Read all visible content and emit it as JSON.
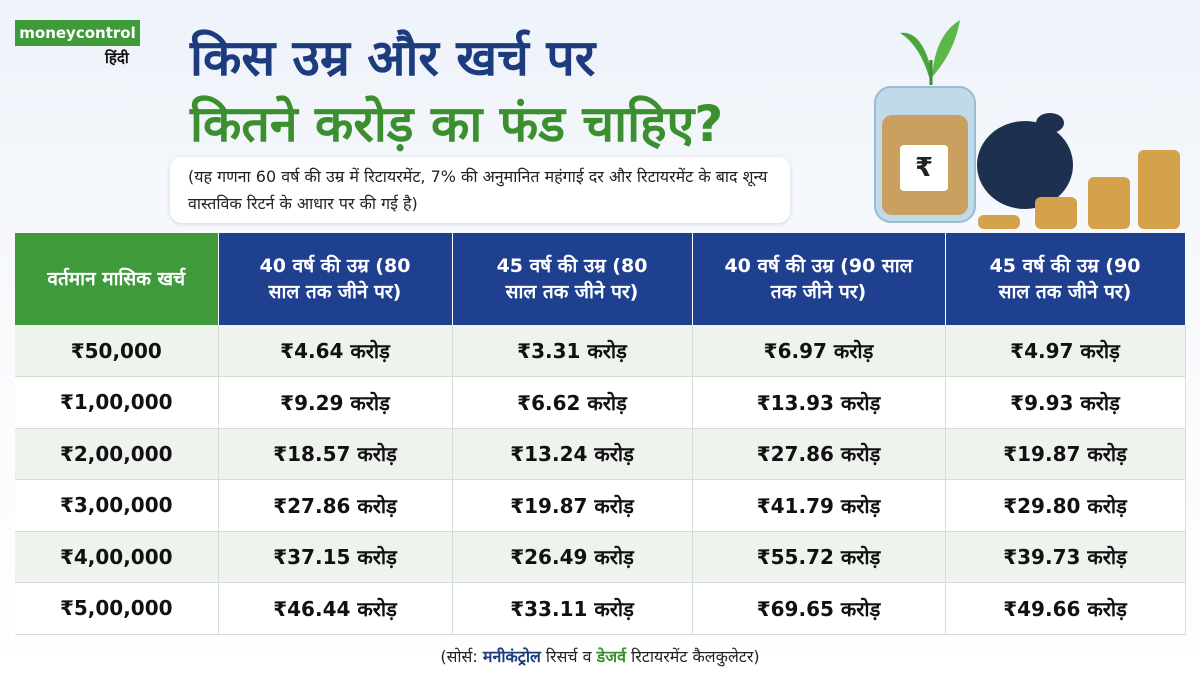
{
  "header": {
    "logo": "moneycontrol",
    "logo_sub": "हिंदी",
    "title_line1": "किस उम्र और खर्च पर",
    "title_line2": "कितने करोड़ का फंड चाहिए?",
    "note": "(यह गणना 60 वर्ष की उम्र में रिटायरमेंट, 7% की अनुमानित महंगाई दर और रिटायरमेंट के बाद शून्य वास्तविक रिटर्न के आधार पर की गई है)",
    "jar_symbol": "₹"
  },
  "table": {
    "columns": [
      "वर्तमान मासिक खर्च",
      "40 वर्ष की उम्र (80 साल तक जीने पर)",
      "45 वर्ष की उम्र (80 साल तक जीने पर)",
      "40 वर्ष की उम्र (90 साल तक जीने पर)",
      "45 वर्ष की उम्र (90 साल तक जीने पर)"
    ],
    "rows": [
      [
        "₹50,000",
        "₹4.64 करोड़",
        "₹3.31 करोड़",
        "₹6.97 करोड़",
        "₹4.97 करोड़"
      ],
      [
        "₹1,00,000",
        "₹9.29 करोड़",
        "₹6.62 करोड़",
        "₹13.93 करोड़",
        "₹9.93 करोड़"
      ],
      [
        "₹2,00,000",
        "₹18.57 करोड़",
        "₹13.24 करोड़",
        "₹27.86 करोड़",
        "₹19.87 करोड़"
      ],
      [
        "₹3,00,000",
        "₹27.86 करोड़",
        "₹19.87 करोड़",
        "₹41.79 करोड़",
        "₹29.80 करोड़"
      ],
      [
        "₹4,00,000",
        "₹37.15 करोड़",
        "₹26.49 करोड़",
        "₹55.72 करोड़",
        "₹39.73 करोड़"
      ],
      [
        "₹5,00,000",
        "₹46.44 करोड़",
        "₹33.11 करोड़",
        "₹69.65 करोड़",
        "₹49.66 करोड़"
      ]
    ]
  },
  "source": [
    "(सोर्स:",
    "मनीकंट्रोल",
    "रिसर्च व",
    "डेजर्व",
    "रिटायरमेंट कैलकुलेटर)"
  ]
}
